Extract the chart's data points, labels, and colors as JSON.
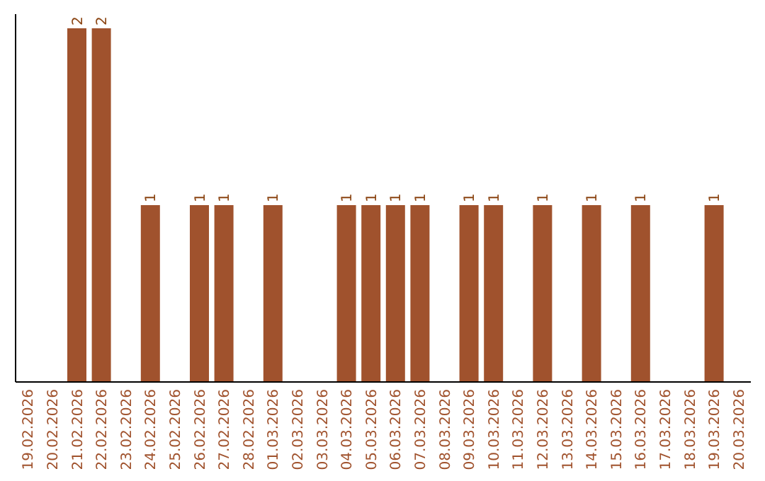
{
  "chart_data": {
    "type": "bar",
    "categories": [
      "19.02.2026",
      "20.02.2026",
      "21.02.2026",
      "22.02.2026",
      "23.02.2026",
      "24.02.2026",
      "25.02.2026",
      "26.02.2026",
      "27.02.2026",
      "28.02.2026",
      "01.03.2026",
      "02.03.2026",
      "03.03.2026",
      "04.03.2026",
      "05.03.2026",
      "06.03.2026",
      "07.03.2026",
      "08.03.2026",
      "09.03.2026",
      "10.03.2026",
      "11.03.2026",
      "12.03.2026",
      "13.03.2026",
      "14.03.2026",
      "15.03.2026",
      "16.03.2026",
      "17.03.2026",
      "18.03.2026",
      "19.03.2026",
      "20.03.2026"
    ],
    "values": [
      0,
      0,
      2,
      2,
      0,
      1,
      0,
      1,
      1,
      0,
      1,
      0,
      0,
      1,
      1,
      1,
      1,
      0,
      1,
      1,
      0,
      1,
      0,
      1,
      0,
      1,
      0,
      0,
      1,
      0
    ],
    "value_labels": [
      null,
      null,
      "2",
      "2",
      null,
      "1",
      null,
      "1",
      "1",
      null,
      "1",
      null,
      null,
      "1",
      "1",
      "1",
      "1",
      null,
      "1",
      "1",
      null,
      "1",
      null,
      "1",
      null,
      "1",
      null,
      null,
      "1",
      null
    ],
    "color": "#a0522d"
  }
}
